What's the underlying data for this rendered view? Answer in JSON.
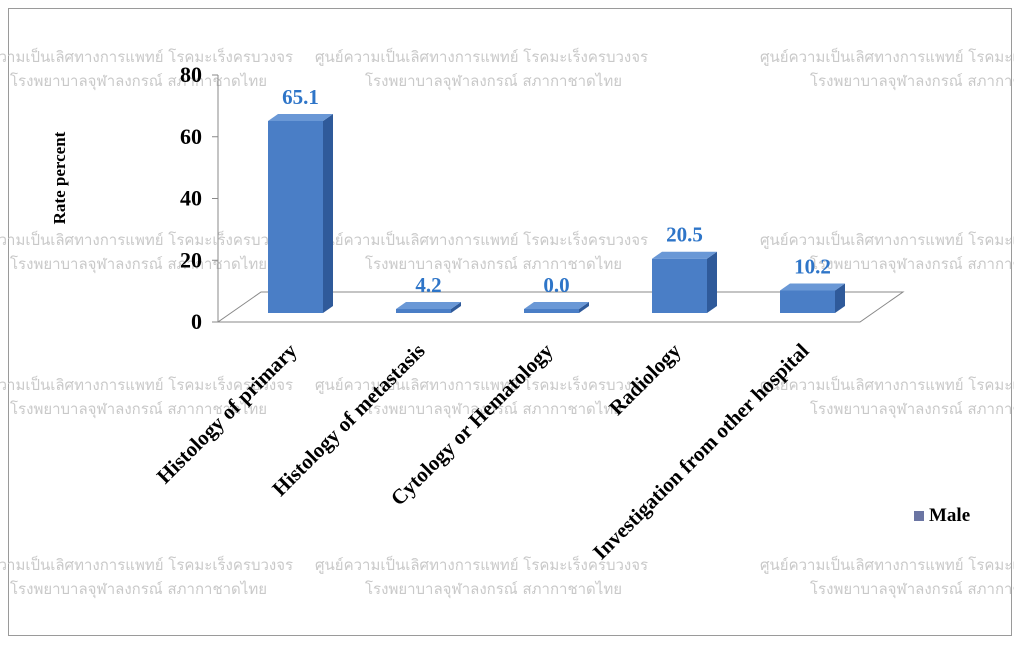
{
  "watermark": {
    "line1": "ศูนย์ความเป็นเลิศทางการแพทย์ โรคมะเร็งครบวงจร",
    "line2": "โรงพยาบาลจุฬาลงกรณ์ สภากาชาดไทย"
  },
  "colors": {
    "bar_front": "#4a7ec6",
    "bar_side": "#2f5a9a",
    "bar_top": "#6a98d6",
    "label": "#2e75c8",
    "legend_swatch": "#6b75a3"
  },
  "chart_data": {
    "type": "bar",
    "three_d": true,
    "categories": [
      "Histology of primary",
      "Histology of metastasis",
      "Cytology or Hematology",
      "Radiology",
      "Investigation from other hospital"
    ],
    "series": [
      {
        "name": "Male",
        "values": [
          65.1,
          4.2,
          0.0,
          20.5,
          10.2
        ]
      }
    ],
    "data_labels": [
      "65.1",
      "4.2",
      "0.0",
      "20.5",
      "10.2"
    ],
    "ylabel": "Rate percent",
    "xlabel": "",
    "ylim": [
      0,
      80
    ],
    "yticks": [
      "0",
      "20",
      "40",
      "60",
      "80"
    ],
    "legend": {
      "position": "right",
      "entries": [
        "Male"
      ]
    },
    "grid": false
  }
}
